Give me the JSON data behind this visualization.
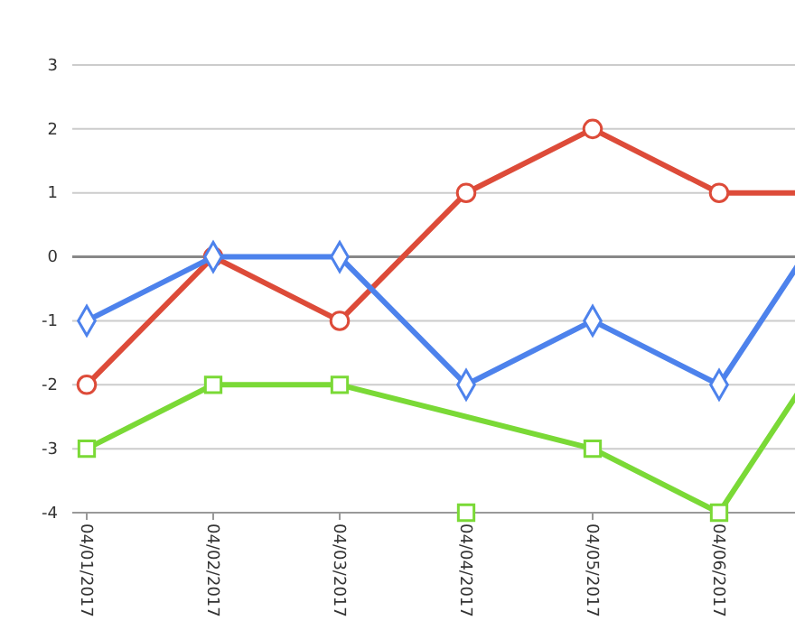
{
  "chart_data": {
    "type": "line",
    "categories": [
      "04/01/2017",
      "04/02/2017",
      "04/03/2017",
      "04/04/2017",
      "04/05/2017",
      "04/06/2017",
      null
    ],
    "ylim": [
      -4,
      3
    ],
    "yticks": [
      -4,
      -3,
      -2,
      -1,
      0,
      1,
      2,
      3
    ],
    "grid": "y",
    "series": [
      {
        "color": "#dd4b39",
        "marker": "circle",
        "values": [
          -2,
          0,
          -1,
          1,
          2,
          1,
          1
        ]
      },
      {
        "color": "#4d82ec",
        "marker": "diamond",
        "values": [
          -1,
          0,
          0,
          -2,
          -1,
          -2,
          1
        ]
      },
      {
        "color": "#7ad936",
        "marker": "square",
        "values": [
          -3,
          -2,
          -2,
          null,
          -3,
          -4,
          -1
        ]
      },
      {
        "type": "scatter",
        "color": "#7ad936",
        "marker": "square",
        "values": [
          null,
          null,
          null,
          -4,
          null,
          null,
          null
        ]
      }
    ]
  }
}
